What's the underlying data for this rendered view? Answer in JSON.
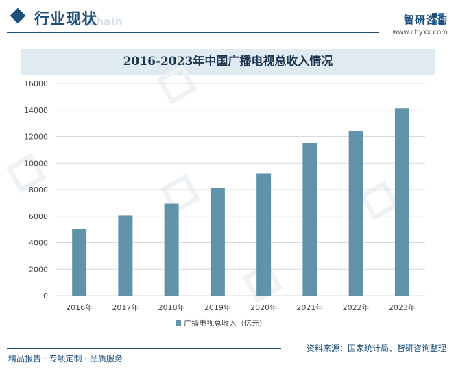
{
  "header": {
    "section_title": "行业现状",
    "ghost_text": "Chain",
    "brand_name": "智研咨询",
    "brand_url": "www.chyxx.com"
  },
  "footer": {
    "left_text": "精品报告 · 专项定制 · 品质服务",
    "source_text": "资料来源：国家统计局、智研咨询整理"
  },
  "colors": {
    "bar": "#6093a9",
    "brand": "#1e4f7b",
    "grid": "#d9d9d9",
    "title_band": "#dfeaf1"
  },
  "chart_data": {
    "type": "bar",
    "title": "2016-2023年中国广播电视总收入情况",
    "categories": [
      "2016年",
      "2017年",
      "2018年",
      "2019年",
      "2020年",
      "2021年",
      "2022年",
      "2023年"
    ],
    "series": [
      {
        "name": "广播电视总收入（亿元）",
        "values": [
          5040,
          6070,
          6940,
          8107,
          9215,
          11510,
          12420,
          14129
        ]
      }
    ],
    "yticks": [
      "0",
      "2000",
      "4000",
      "6000",
      "8000",
      "10000",
      "12000",
      "14000",
      "16000"
    ],
    "ylim": [
      0,
      16000
    ],
    "grid": true,
    "legend_position": "bottom-center"
  }
}
